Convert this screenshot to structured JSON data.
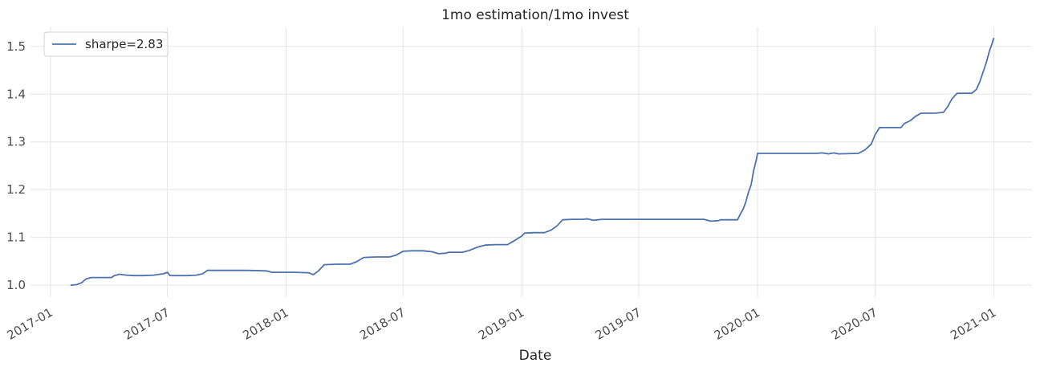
{
  "chart_data": {
    "type": "line",
    "title": "1mo estimation/1mo invest",
    "xlabel": "Date",
    "ylabel": "",
    "grid": true,
    "legend_position": "top-left",
    "xlim": [
      "2016-12-01",
      "2021-03-01"
    ],
    "ylim": [
      0.975,
      1.54
    ],
    "x_ticks": [
      "2017-01",
      "2017-07",
      "2018-01",
      "2018-07",
      "2019-01",
      "2019-07",
      "2020-01",
      "2020-07",
      "2021-01"
    ],
    "y_ticks": [
      "1.0",
      "1.1",
      "1.2",
      "1.3",
      "1.4",
      "1.5"
    ],
    "series": [
      {
        "name": "sharpe=2.83",
        "color": "#4c72b0",
        "points": [
          [
            "2017-02-01",
            1.0
          ],
          [
            "2017-02-10",
            1.001
          ],
          [
            "2017-02-18",
            1.005
          ],
          [
            "2017-02-25",
            1.013
          ],
          [
            "2017-03-05",
            1.016
          ],
          [
            "2017-03-20",
            1.016
          ],
          [
            "2017-04-05",
            1.016
          ],
          [
            "2017-04-10",
            1.02
          ],
          [
            "2017-04-18",
            1.023
          ],
          [
            "2017-04-28",
            1.021
          ],
          [
            "2017-05-10",
            1.02
          ],
          [
            "2017-05-25",
            1.02
          ],
          [
            "2017-06-10",
            1.021
          ],
          [
            "2017-06-25",
            1.024
          ],
          [
            "2017-07-01",
            1.027
          ],
          [
            "2017-07-05",
            1.02
          ],
          [
            "2017-08-01",
            1.02
          ],
          [
            "2017-08-15",
            1.021
          ],
          [
            "2017-08-25",
            1.024
          ],
          [
            "2017-09-01",
            1.031
          ],
          [
            "2017-10-01",
            1.031
          ],
          [
            "2017-11-01",
            1.031
          ],
          [
            "2017-12-01",
            1.03
          ],
          [
            "2017-12-10",
            1.027
          ],
          [
            "2018-01-15",
            1.027
          ],
          [
            "2018-02-05",
            1.026
          ],
          [
            "2018-02-12",
            1.022
          ],
          [
            "2018-02-20",
            1.03
          ],
          [
            "2018-03-01",
            1.043
          ],
          [
            "2018-03-20",
            1.044
          ],
          [
            "2018-04-10",
            1.044
          ],
          [
            "2018-04-20",
            1.049
          ],
          [
            "2018-05-01",
            1.058
          ],
          [
            "2018-05-20",
            1.059
          ],
          [
            "2018-06-10",
            1.059
          ],
          [
            "2018-06-20",
            1.063
          ],
          [
            "2018-07-01",
            1.071
          ],
          [
            "2018-07-15",
            1.072
          ],
          [
            "2018-08-01",
            1.072
          ],
          [
            "2018-08-15",
            1.07
          ],
          [
            "2018-08-25",
            1.066
          ],
          [
            "2018-09-05",
            1.067
          ],
          [
            "2018-09-10",
            1.069
          ],
          [
            "2018-10-01",
            1.069
          ],
          [
            "2018-10-10",
            1.072
          ],
          [
            "2018-10-25",
            1.08
          ],
          [
            "2018-11-05",
            1.084
          ],
          [
            "2018-11-20",
            1.085
          ],
          [
            "2018-12-10",
            1.085
          ],
          [
            "2018-12-20",
            1.093
          ],
          [
            "2019-01-01",
            1.103
          ],
          [
            "2019-01-05",
            1.109
          ],
          [
            "2019-01-20",
            1.11
          ],
          [
            "2019-02-05",
            1.11
          ],
          [
            "2019-02-15",
            1.115
          ],
          [
            "2019-02-25",
            1.125
          ],
          [
            "2019-03-05",
            1.137
          ],
          [
            "2019-03-20",
            1.138
          ],
          [
            "2019-04-05",
            1.138
          ],
          [
            "2019-04-12",
            1.139
          ],
          [
            "2019-04-22",
            1.136
          ],
          [
            "2019-05-05",
            1.138
          ],
          [
            "2019-06-01",
            1.138
          ],
          [
            "2019-07-01",
            1.138
          ],
          [
            "2019-08-01",
            1.138
          ],
          [
            "2019-09-01",
            1.138
          ],
          [
            "2019-10-10",
            1.138
          ],
          [
            "2019-10-20",
            1.134
          ],
          [
            "2019-11-01",
            1.135
          ],
          [
            "2019-11-05",
            1.137
          ],
          [
            "2019-12-01",
            1.137
          ],
          [
            "2019-12-05",
            1.148
          ],
          [
            "2019-12-10",
            1.16
          ],
          [
            "2019-12-14",
            1.175
          ],
          [
            "2019-12-18",
            1.195
          ],
          [
            "2019-12-22",
            1.21
          ],
          [
            "2019-12-26",
            1.24
          ],
          [
            "2019-12-30",
            1.262
          ],
          [
            "2020-01-01",
            1.276
          ],
          [
            "2020-02-01",
            1.276
          ],
          [
            "2020-03-01",
            1.276
          ],
          [
            "2020-04-01",
            1.276
          ],
          [
            "2020-04-10",
            1.277
          ],
          [
            "2020-04-20",
            1.275
          ],
          [
            "2020-04-28",
            1.277
          ],
          [
            "2020-05-05",
            1.275
          ],
          [
            "2020-06-05",
            1.276
          ],
          [
            "2020-06-15",
            1.283
          ],
          [
            "2020-06-25",
            1.295
          ],
          [
            "2020-07-01",
            1.315
          ],
          [
            "2020-07-08",
            1.33
          ],
          [
            "2020-07-20",
            1.33
          ],
          [
            "2020-08-10",
            1.33
          ],
          [
            "2020-08-15",
            1.338
          ],
          [
            "2020-08-25",
            1.345
          ],
          [
            "2020-09-01",
            1.353
          ],
          [
            "2020-09-10",
            1.36
          ],
          [
            "2020-10-01",
            1.36
          ],
          [
            "2020-10-15",
            1.362
          ],
          [
            "2020-10-22",
            1.375
          ],
          [
            "2020-10-28",
            1.39
          ],
          [
            "2020-11-05",
            1.402
          ],
          [
            "2020-11-20",
            1.402
          ],
          [
            "2020-11-28",
            1.402
          ],
          [
            "2020-12-05",
            1.41
          ],
          [
            "2020-12-10",
            1.425
          ],
          [
            "2020-12-15",
            1.445
          ],
          [
            "2020-12-20",
            1.465
          ],
          [
            "2020-12-25",
            1.49
          ],
          [
            "2020-12-29",
            1.505
          ],
          [
            "2021-01-01",
            1.518
          ]
        ]
      }
    ]
  }
}
